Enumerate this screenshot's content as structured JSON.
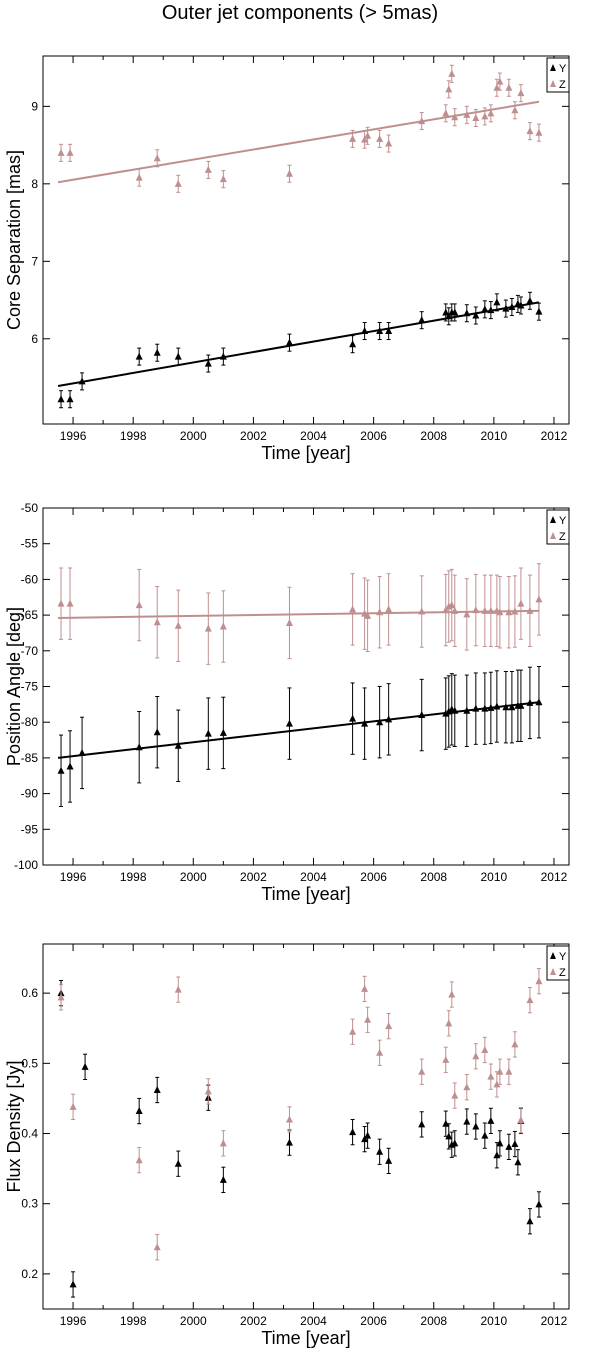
{
  "figure_title": "Outer jet components (> 5mas)",
  "colors": {
    "Y": "#000000",
    "Z": "#bf8f8f"
  },
  "chart_data": [
    {
      "type": "scatter",
      "name": "core-separation",
      "xlabel": "Time [year]",
      "ylabel": "Core Separation [mas]",
      "xlim": [
        1995.0,
        2012.5
      ],
      "ylim": [
        4.9,
        9.65
      ],
      "xticks": [
        1996,
        1998,
        2000,
        2002,
        2004,
        2006,
        2008,
        2010,
        2012
      ],
      "yticks": [
        6,
        7,
        8,
        9
      ],
      "legend": [
        "Y",
        "Z"
      ],
      "legend_position": "top-right",
      "series": [
        {
          "name": "Y",
          "x": [
            1995.6,
            1995.9,
            1996.3,
            1998.2,
            1998.8,
            1999.5,
            2000.5,
            2001.0,
            2003.2,
            2005.3,
            2005.7,
            2006.2,
            2006.5,
            2007.6,
            2008.4,
            2008.5,
            2008.6,
            2008.7,
            2009.1,
            2009.4,
            2009.7,
            2009.9,
            2010.1,
            2010.4,
            2010.6,
            2010.8,
            2010.9,
            2011.2,
            2011.5
          ],
          "y": [
            5.22,
            5.22,
            5.45,
            5.77,
            5.82,
            5.77,
            5.68,
            5.77,
            5.95,
            5.93,
            6.1,
            6.1,
            6.1,
            6.24,
            6.34,
            6.29,
            6.34,
            6.34,
            6.33,
            6.3,
            6.38,
            6.37,
            6.47,
            6.39,
            6.41,
            6.45,
            6.43,
            6.49,
            6.35
          ],
          "err": 0.11,
          "fit": [
            [
              1995.5,
              5.39
            ],
            [
              2011.5,
              6.47
            ]
          ]
        },
        {
          "name": "Z",
          "x": [
            1995.6,
            1995.9,
            1998.2,
            1998.8,
            1999.5,
            2000.5,
            2001.0,
            2003.2,
            2005.3,
            2005.7,
            2005.8,
            2006.2,
            2006.5,
            2007.6,
            2008.4,
            2008.5,
            2008.6,
            2008.7,
            2009.1,
            2009.4,
            2009.7,
            2009.9,
            2010.1,
            2010.2,
            2010.5,
            2010.7,
            2010.9,
            2011.2,
            2011.5
          ],
          "y": [
            8.4,
            8.4,
            8.08,
            8.33,
            8.0,
            8.18,
            8.06,
            8.13,
            8.58,
            8.57,
            8.62,
            8.58,
            8.52,
            8.81,
            8.91,
            9.22,
            9.42,
            8.86,
            8.89,
            8.85,
            8.87,
            8.91,
            9.24,
            9.32,
            9.24,
            8.95,
            9.17,
            8.68,
            8.66
          ],
          "err": 0.11,
          "fit": [
            [
              1995.5,
              8.02
            ],
            [
              2011.5,
              9.06
            ]
          ]
        }
      ]
    },
    {
      "type": "scatter",
      "name": "position-angle",
      "xlabel": "Time [year]",
      "ylabel": "Position Angle [deg]",
      "xlim": [
        1995.0,
        2012.5
      ],
      "ylim": [
        -100,
        -50
      ],
      "xticks": [
        1996,
        1998,
        2000,
        2002,
        2004,
        2006,
        2008,
        2010,
        2012
      ],
      "yticks": [
        -100,
        -95,
        -90,
        -85,
        -80,
        -75,
        -70,
        -65,
        -60,
        -55,
        -50
      ],
      "legend": [
        "Y",
        "Z"
      ],
      "legend_position": "top-right",
      "series": [
        {
          "name": "Y",
          "x": [
            1995.6,
            1995.9,
            1996.3,
            1998.2,
            1998.8,
            1999.5,
            2000.5,
            2001.0,
            2003.2,
            2005.3,
            2005.7,
            2006.2,
            2006.5,
            2007.6,
            2008.4,
            2008.5,
            2008.6,
            2008.7,
            2009.1,
            2009.4,
            2009.7,
            2009.9,
            2010.1,
            2010.4,
            2010.6,
            2010.8,
            2010.9,
            2011.2,
            2011.5
          ],
          "y": [
            -86.8,
            -86.2,
            -84.3,
            -83.5,
            -81.4,
            -83.3,
            -81.6,
            -81.5,
            -80.2,
            -79.5,
            -80.2,
            -80.0,
            -79.6,
            -79.0,
            -78.8,
            -78.5,
            -78.2,
            -78.4,
            -78.4,
            -78.1,
            -78.1,
            -78.0,
            -77.8,
            -77.9,
            -77.9,
            -77.7,
            -77.7,
            -77.3,
            -77.2
          ],
          "err": 5.0,
          "fit": [
            [
              1995.5,
              -85.0
            ],
            [
              2011.5,
              -77.2
            ]
          ]
        },
        {
          "name": "Z",
          "x": [
            1995.6,
            1995.9,
            1998.2,
            1998.8,
            1999.5,
            2000.5,
            2001.0,
            2003.2,
            2005.3,
            2005.7,
            2005.8,
            2006.2,
            2006.5,
            2007.6,
            2008.4,
            2008.5,
            2008.6,
            2008.7,
            2009.1,
            2009.4,
            2009.7,
            2009.9,
            2010.1,
            2010.2,
            2010.5,
            2010.7,
            2010.9,
            2011.2,
            2011.5
          ],
          "y": [
            -63.4,
            -63.4,
            -63.6,
            -66.0,
            -66.5,
            -66.9,
            -66.6,
            -66.1,
            -64.2,
            -64.8,
            -65.1,
            -64.6,
            -64.2,
            -64.5,
            -64.3,
            -63.8,
            -63.6,
            -64.4,
            -64.9,
            -64.3,
            -64.4,
            -64.4,
            -64.4,
            -64.6,
            -64.6,
            -64.5,
            -63.4,
            -64.4,
            -62.8
          ],
          "err": 5.0,
          "fit": [
            [
              1995.5,
              -65.4
            ],
            [
              2011.5,
              -64.4
            ]
          ]
        }
      ]
    },
    {
      "type": "scatter",
      "name": "flux-density",
      "xlabel": "Time [year]",
      "ylabel": "Flux Density [Jy]",
      "xlim": [
        1995.0,
        2012.5
      ],
      "ylim": [
        0.15,
        0.67
      ],
      "xticks": [
        1996,
        1998,
        2000,
        2002,
        2004,
        2006,
        2008,
        2010,
        2012
      ],
      "yticks": [
        0.2,
        0.3,
        0.4,
        0.5,
        0.6
      ],
      "legend": [
        "Y",
        "Z"
      ],
      "legend_position": "top-right",
      "series": [
        {
          "name": "Y",
          "x": [
            1995.6,
            1996.0,
            1996.4,
            1998.2,
            1998.8,
            1999.5,
            2000.5,
            2001.0,
            2003.2,
            2005.3,
            2005.7,
            2005.8,
            2006.2,
            2006.5,
            2007.6,
            2008.4,
            2008.5,
            2008.6,
            2008.7,
            2009.1,
            2009.4,
            2009.7,
            2009.9,
            2010.1,
            2010.2,
            2010.5,
            2010.7,
            2010.8,
            2010.9,
            2011.2,
            2011.5
          ],
          "y": [
            0.6,
            0.185,
            0.495,
            0.432,
            0.462,
            0.357,
            0.451,
            0.334,
            0.387,
            0.402,
            0.392,
            0.397,
            0.374,
            0.361,
            0.413,
            0.414,
            0.396,
            0.384,
            0.386,
            0.417,
            0.41,
            0.397,
            0.418,
            0.369,
            0.386,
            0.381,
            0.385,
            0.359,
            0.418,
            0.275,
            0.299
          ],
          "err": 0.018,
          "fit": null
        },
        {
          "name": "Z",
          "x": [
            1995.6,
            1996.0,
            1998.2,
            1998.8,
            1999.5,
            2000.5,
            2001.0,
            2003.2,
            2005.3,
            2005.7,
            2005.8,
            2006.2,
            2006.5,
            2007.6,
            2008.4,
            2008.5,
            2008.6,
            2008.7,
            2009.1,
            2009.4,
            2009.7,
            2009.9,
            2010.1,
            2010.2,
            2010.5,
            2010.7,
            2010.9,
            2011.2,
            2011.5
          ],
          "y": [
            0.594,
            0.438,
            0.362,
            0.238,
            0.605,
            0.46,
            0.386,
            0.42,
            0.545,
            0.606,
            0.562,
            0.515,
            0.553,
            0.488,
            0.505,
            0.557,
            0.598,
            0.454,
            0.466,
            0.51,
            0.519,
            0.481,
            0.47,
            0.488,
            0.488,
            0.527,
            0.419,
            0.59,
            0.617
          ],
          "err": 0.018,
          "fit": null
        }
      ]
    }
  ]
}
